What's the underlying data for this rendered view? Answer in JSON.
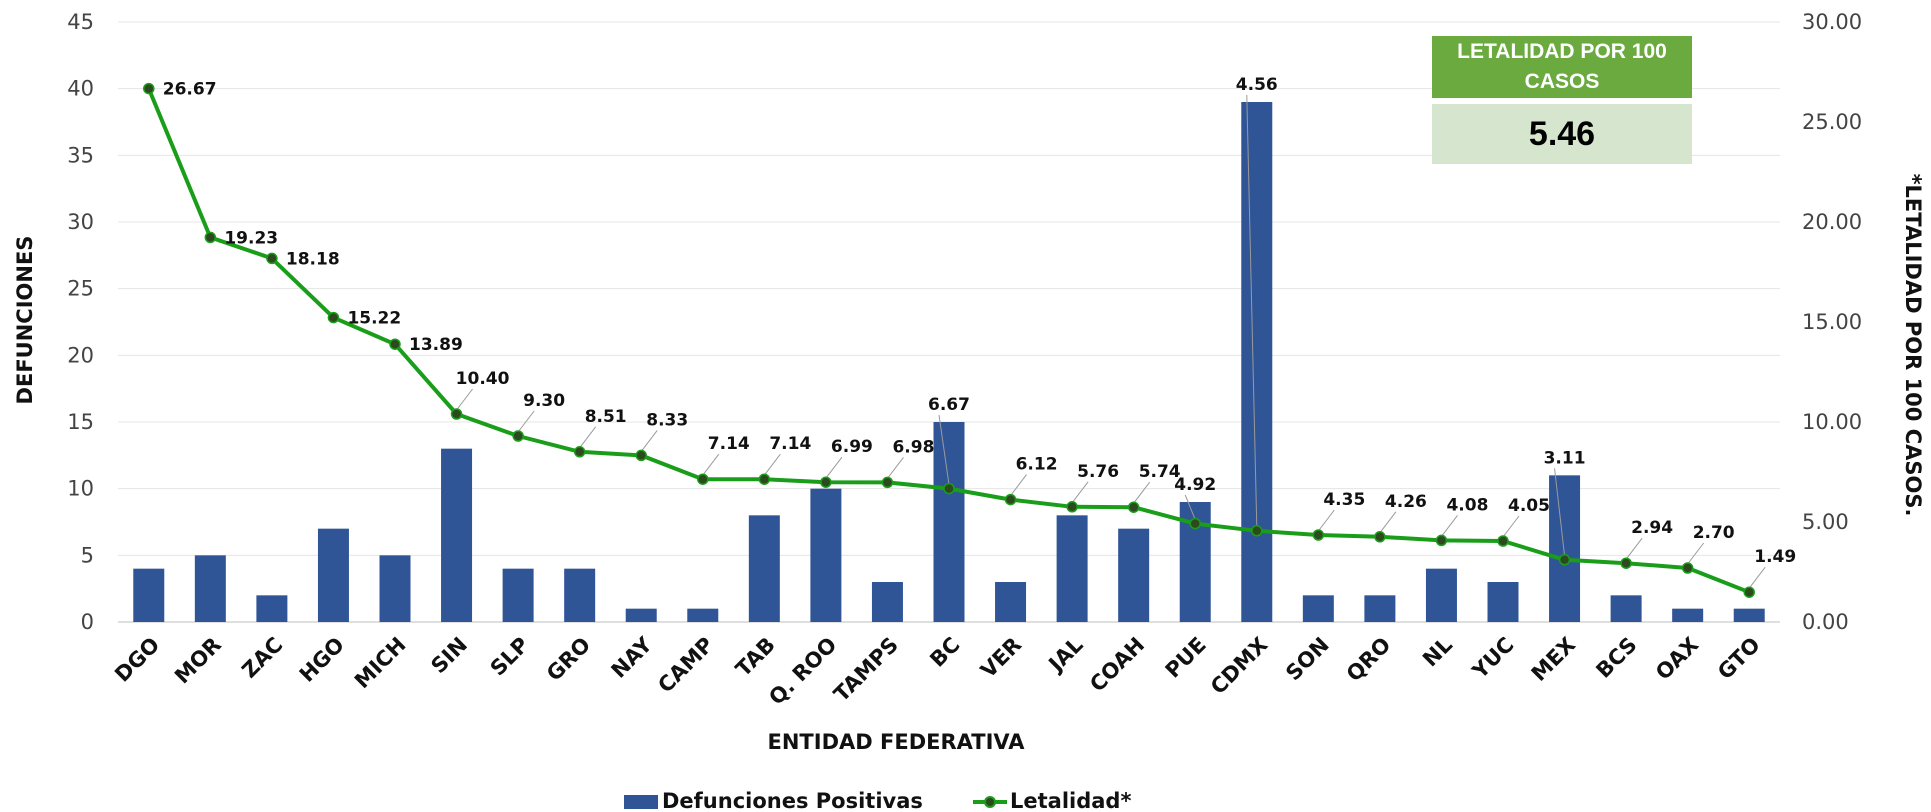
{
  "chart_data": {
    "type": "bar",
    "categories": [
      "DGO",
      "MOR",
      "ZAC",
      "HGO",
      "MICH",
      "SIN",
      "SLP",
      "GRO",
      "NAY",
      "CAMP",
      "TAB",
      "Q. ROO",
      "TAMPS",
      "BC",
      "VER",
      "JAL",
      "COAH",
      "PUE",
      "CDMX",
      "SON",
      "QRO",
      "NL",
      "YUC",
      "MEX",
      "BCS",
      "OAX",
      "GTO"
    ],
    "series": [
      {
        "name": "Defunciones Positivas",
        "type": "bar",
        "axis": "left",
        "color": "#2f5597",
        "values": [
          4,
          5,
          2,
          7,
          5,
          13,
          4,
          4,
          1,
          1,
          8,
          10,
          3,
          15,
          3,
          8,
          7,
          9,
          39,
          2,
          2,
          4,
          3,
          11,
          2,
          1,
          1
        ]
      },
      {
        "name": "Letalidad*",
        "type": "line",
        "axis": "right",
        "color": "#1a9e1a",
        "values": [
          26.67,
          19.23,
          18.18,
          15.22,
          13.89,
          10.4,
          9.3,
          8.51,
          8.33,
          7.14,
          7.14,
          6.99,
          6.98,
          6.67,
          6.12,
          5.76,
          5.74,
          4.92,
          4.56,
          4.35,
          4.26,
          4.08,
          4.05,
          3.11,
          2.94,
          2.7,
          1.49
        ],
        "labels": [
          "26.67",
          "19.23",
          "18.18",
          "15.22",
          "13.89",
          "10.40",
          "9.30",
          "8.51",
          "8.33",
          "7.14",
          "7.14",
          "6.99",
          "6.98",
          "6.67",
          "6.12",
          "5.76",
          "5.74",
          "4.92",
          "4.56",
          "4.35",
          "4.26",
          "4.08",
          "4.05",
          "3.11",
          "2.94",
          "2.70",
          "1.49"
        ]
      }
    ],
    "xlabel": "ENTIDAD FEDERATIVA",
    "ylabel": "DEFUNCIONES",
    "y2label": "*LETALIDAD POR 100 CASOS.",
    "ylim": [
      0,
      45
    ],
    "y2lim": [
      0,
      30
    ],
    "yticks": [
      "0",
      "5",
      "10",
      "15",
      "20",
      "25",
      "30",
      "35",
      "40",
      "45"
    ],
    "y2ticks": [
      "0.00",
      "5.00",
      "10.00",
      "15.00",
      "20.00",
      "25.00",
      "30.00"
    ],
    "grid": true,
    "legend_position": "bottom"
  },
  "kpi": {
    "title": "LETALIDAD POR 100 CASOS",
    "value": "5.46",
    "header_color": "#6aaa3f",
    "value_bg_color": "#d6e5cd"
  }
}
